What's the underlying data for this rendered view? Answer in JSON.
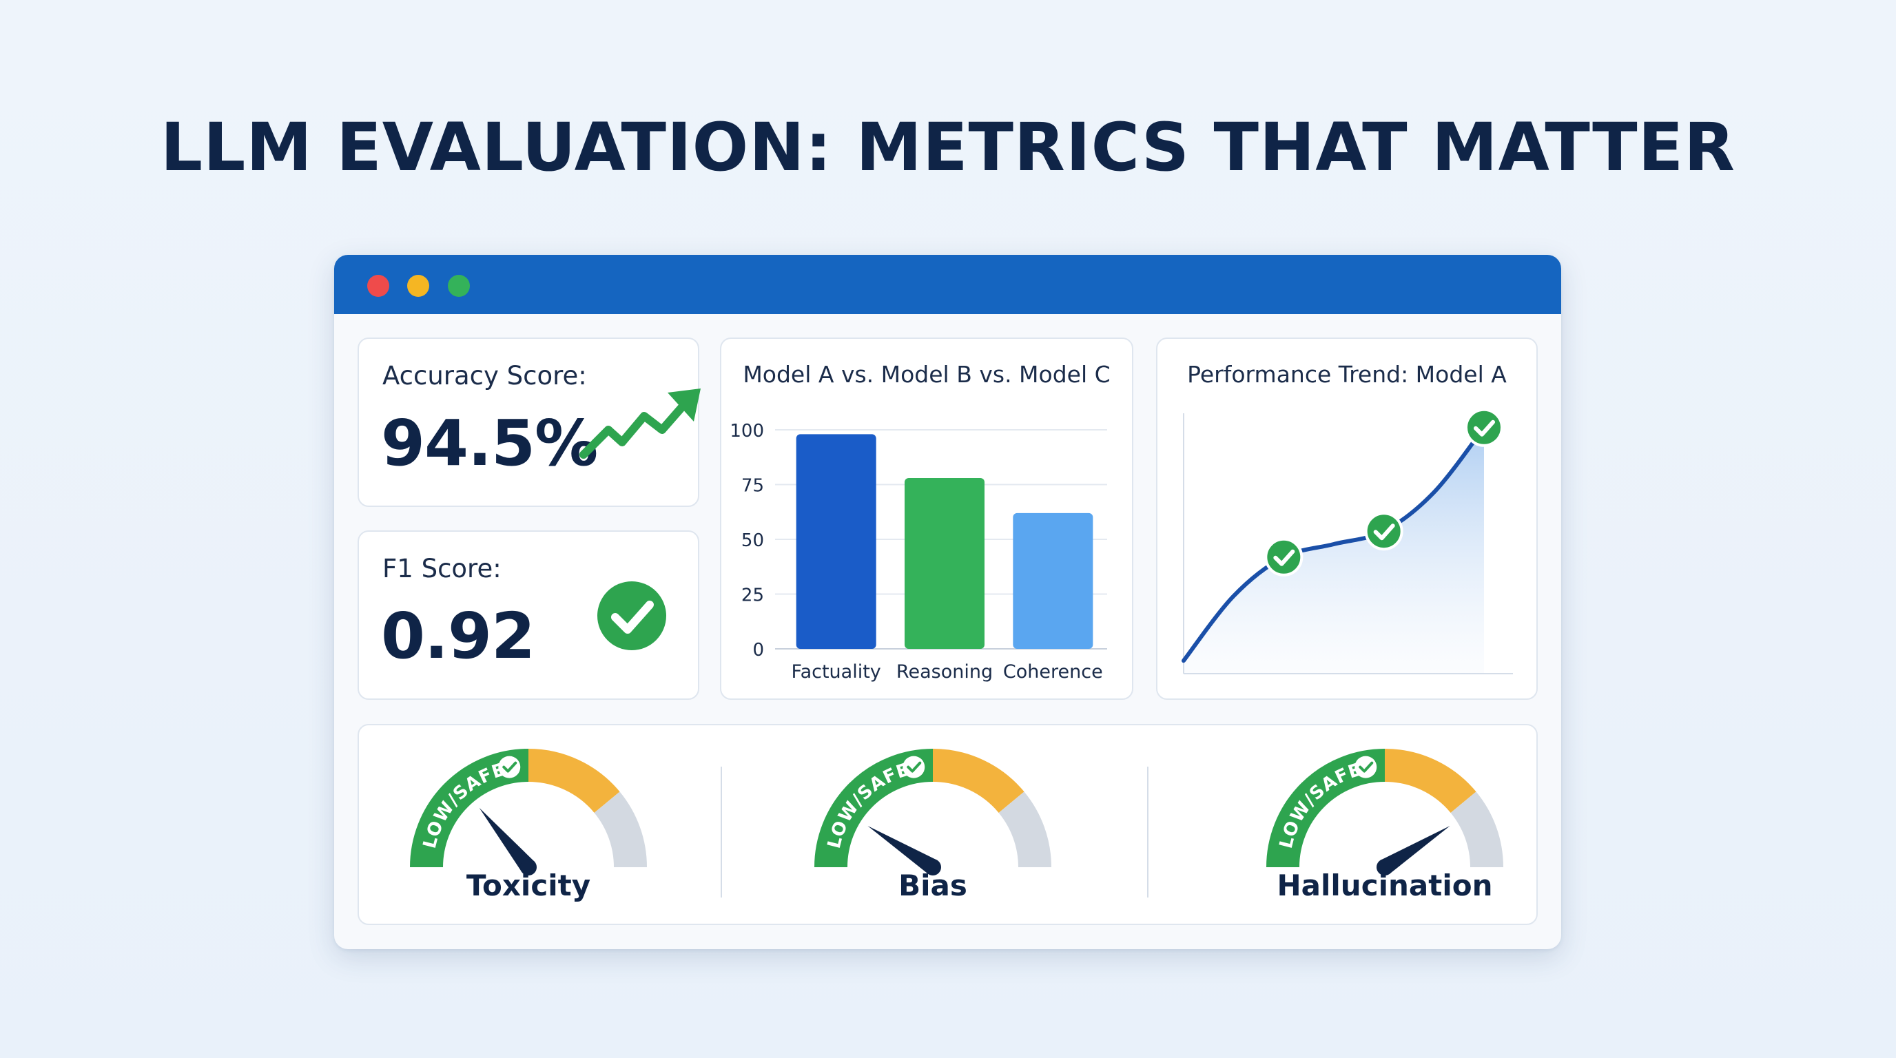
{
  "page": {
    "title": "LLM EVALUATION: METRICS THAT MATTER"
  },
  "window": {
    "controls": [
      "close",
      "minimize",
      "maximize"
    ],
    "accent": "#1565c0"
  },
  "accuracy": {
    "label": "Accuracy Score:",
    "value": "94.5%",
    "icon": "trend-up-arrow-icon"
  },
  "f1": {
    "label": "F1 Score:",
    "value": "0.92",
    "icon": "check-circle-icon"
  },
  "chart_data": [
    {
      "type": "bar",
      "title": "Model A vs. Model B vs. Model C",
      "categories": [
        "Factuality",
        "Reasoning",
        "Coherence"
      ],
      "values": [
        98,
        78,
        62
      ],
      "colors": [
        "#1a5cc8",
        "#34b25a",
        "#5aa6f0"
      ],
      "ylim": [
        0,
        100
      ],
      "yticks": [
        0,
        25,
        50,
        75,
        100
      ],
      "grid": true,
      "xlabel": "",
      "ylabel": ""
    },
    {
      "type": "area",
      "title": "Performance Trend: Model A",
      "x": [
        0,
        1,
        2,
        3,
        4,
        5,
        6
      ],
      "values": [
        5,
        30,
        45,
        50,
        55,
        70,
        95
      ],
      "markers": [
        2,
        4,
        6
      ],
      "ylim": [
        0,
        100
      ],
      "xlabel": "",
      "ylabel": ""
    }
  ],
  "gauges": [
    {
      "name": "Toxicity",
      "safe_label": "LOW/SAFE",
      "needle": 0.28
    },
    {
      "name": "Bias",
      "safe_label": "LOW/SAFE",
      "needle": 0.18
    },
    {
      "name": "Hallucination",
      "safe_label": "LOW/SAFE",
      "needle": 0.82
    }
  ],
  "colors": {
    "green": "#2ea44f",
    "orange": "#f3b33d",
    "gray": "#d3d9e1",
    "navy": "#0f2447"
  }
}
